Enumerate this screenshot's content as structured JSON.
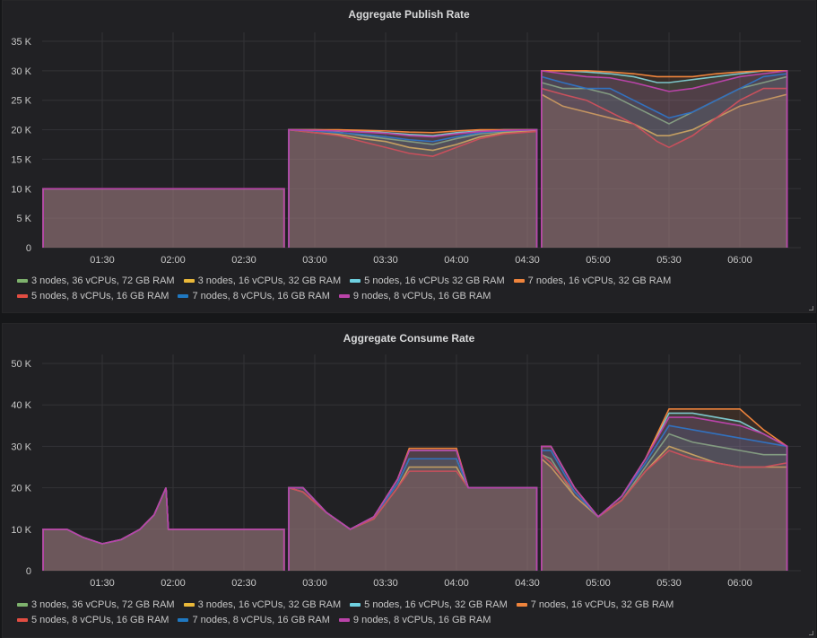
{
  "colors": [
    "#7eb26d",
    "#eab839",
    "#6ed0e0",
    "#ef843c",
    "#e24d42",
    "#1f78c1",
    "#ba43a9"
  ],
  "chart_data": [
    {
      "type": "line",
      "title": "Aggregate Publish Rate",
      "tick_suffix": " K",
      "ylim": [
        0,
        35
      ],
      "yticks": [
        0,
        5,
        10,
        15,
        20,
        25,
        30,
        35
      ],
      "xticks": [
        "01:30",
        "02:00",
        "02:30",
        "03:00",
        "03:30",
        "04:00",
        "04:30",
        "05:00",
        "05:30",
        "06:00"
      ],
      "grid": true,
      "legend": "bottom",
      "fill": true,
      "x": [
        "01:05",
        "01:15",
        "01:25",
        "01:35",
        "01:45",
        "01:55",
        "02:05",
        "02:15",
        "02:25",
        "02:35",
        "02:47",
        "02:48",
        "02:49",
        "03:00",
        "03:10",
        "03:20",
        "03:30",
        "03:40",
        "03:50",
        "04:00",
        "04:10",
        "04:20",
        "04:34",
        "04:35",
        "04:36",
        "04:45",
        "04:55",
        "05:05",
        "05:15",
        "05:25",
        "05:30",
        "05:40",
        "05:50",
        "06:00",
        "06:10",
        "06:20"
      ],
      "series": [
        {
          "name": "3 nodes, 36 vCPUs, 72 GB RAM",
          "values": [
            10,
            10,
            10,
            10,
            10,
            10,
            10,
            10,
            10,
            10,
            10,
            null,
            20,
            19.8,
            19.6,
            19,
            18.5,
            18,
            17.5,
            18.5,
            19.3,
            19.7,
            20,
            null,
            28,
            27,
            27,
            26,
            24,
            22,
            21,
            23,
            25,
            27,
            28,
            29
          ]
        },
        {
          "name": "3 nodes, 16 vCPUs, 32 GB RAM",
          "values": [
            10,
            10,
            10,
            10,
            10,
            10,
            10,
            10,
            10,
            10,
            10,
            null,
            20,
            19.5,
            19.2,
            18.5,
            18,
            17,
            16.5,
            17.5,
            18.8,
            19.5,
            19.8,
            null,
            26,
            24,
            23,
            22,
            21,
            19,
            19,
            20,
            22,
            24,
            25,
            26
          ]
        },
        {
          "name": "5 nodes, 16 vCPUs 32 GB RAM",
          "values": [
            10,
            10,
            10,
            10,
            10,
            10,
            10,
            10,
            10,
            10,
            10,
            null,
            20,
            20,
            19.9,
            19.8,
            19.5,
            19.2,
            19,
            19.5,
            19.8,
            20,
            20,
            null,
            30,
            30,
            29.8,
            29.5,
            29,
            28,
            28,
            28.5,
            29,
            29.5,
            30,
            30
          ]
        },
        {
          "name": "7 nodes, 16 vCPUs, 32 GB RAM",
          "values": [
            10,
            10,
            10,
            10,
            10,
            10,
            10,
            10,
            10,
            10,
            10,
            null,
            20,
            20,
            20,
            19.9,
            19.8,
            19.6,
            19.5,
            19.8,
            20,
            20,
            20,
            null,
            30,
            30,
            30,
            29.8,
            29.5,
            29,
            29,
            29,
            29.5,
            29.8,
            30,
            30
          ]
        },
        {
          "name": "5 nodes, 8 vCPUs, 16 GB RAM",
          "values": [
            10,
            10,
            10,
            10,
            10,
            10,
            10,
            10,
            10,
            10,
            10,
            null,
            20,
            19.5,
            19,
            18,
            17,
            16,
            15.5,
            17,
            18.5,
            19.3,
            19.7,
            null,
            27,
            26,
            25,
            23,
            21,
            18,
            17,
            19,
            22,
            25,
            27,
            27
          ]
        },
        {
          "name": "7 nodes, 8 vCPUs, 16 GB RAM",
          "values": [
            10,
            10,
            10,
            10,
            10,
            10,
            10,
            10,
            10,
            10,
            10,
            null,
            20,
            19.8,
            19.5,
            19.2,
            18.8,
            18.3,
            18,
            18.8,
            19.5,
            19.8,
            20,
            null,
            29,
            28,
            27,
            27,
            25,
            23,
            22,
            23,
            25,
            27,
            29,
            29.5
          ]
        },
        {
          "name": "9 nodes, 8 vCPUs, 16 GB RAM",
          "values": [
            10,
            10,
            10,
            10,
            10,
            10,
            10,
            10,
            10,
            10,
            10,
            null,
            20,
            19.9,
            19.8,
            19.6,
            19.4,
            19,
            18.8,
            19.3,
            19.7,
            19.9,
            20,
            null,
            30,
            29.5,
            29,
            28.8,
            28,
            27,
            26.5,
            27,
            28,
            29,
            29.5,
            30
          ]
        }
      ]
    },
    {
      "type": "line",
      "title": "Aggregate Consume Rate",
      "tick_suffix": " K",
      "ylim": [
        0,
        50
      ],
      "yticks": [
        0,
        10,
        20,
        30,
        40,
        50
      ],
      "xticks": [
        "01:30",
        "02:00",
        "02:30",
        "03:00",
        "03:30",
        "04:00",
        "04:30",
        "05:00",
        "05:30",
        "06:00"
      ],
      "grid": true,
      "legend": "bottom",
      "fill": true,
      "x": [
        "01:05",
        "01:15",
        "01:22",
        "01:30",
        "01:38",
        "01:46",
        "01:52",
        "01:57",
        "01:58",
        "02:10",
        "02:30",
        "02:47",
        "02:48",
        "02:49",
        "02:55",
        "03:05",
        "03:15",
        "03:25",
        "03:35",
        "03:40",
        "03:50",
        "04:00",
        "04:05",
        "04:15",
        "04:25",
        "04:34",
        "04:35",
        "04:36",
        "04:40",
        "04:50",
        "05:00",
        "05:10",
        "05:20",
        "05:30",
        "05:40",
        "05:50",
        "06:00",
        "06:10",
        "06:20"
      ],
      "series": [
        {
          "name": "3 nodes, 36 vCPUs, 72 GB RAM",
          "values": [
            10,
            10,
            8,
            6.5,
            7.5,
            10,
            13.5,
            20,
            10,
            10,
            10,
            10,
            null,
            20,
            20,
            14,
            10,
            13,
            21,
            27,
            27,
            27,
            20,
            20,
            20,
            20,
            null,
            28,
            27,
            18,
            13,
            17,
            25,
            33,
            31,
            30,
            29,
            28,
            28
          ]
        },
        {
          "name": "3 nodes, 16 vCPUs, 32 GB RAM",
          "values": [
            10,
            10,
            8,
            6.5,
            7.5,
            10,
            13.5,
            20,
            10,
            10,
            10,
            10,
            null,
            20,
            19,
            14,
            10,
            12.5,
            20,
            25,
            25,
            25,
            20,
            20,
            20,
            20,
            null,
            27,
            25,
            18,
            13,
            17,
            24,
            30,
            28,
            26,
            25,
            25,
            25
          ]
        },
        {
          "name": "5 nodes, 16 vCPUs, 32 GB RAM",
          "values": [
            10,
            10,
            8,
            6.5,
            7.5,
            10,
            13.5,
            20,
            10,
            10,
            10,
            10,
            null,
            20,
            20,
            14,
            10,
            13,
            22,
            29,
            29,
            29,
            20,
            20,
            20,
            20,
            null,
            30,
            30,
            20,
            13,
            18,
            27,
            38,
            38,
            37,
            36,
            33,
            30
          ]
        },
        {
          "name": "7 nodes, 16 vCPUs, 32 GB RAM",
          "values": [
            10,
            10,
            8,
            6.5,
            7.5,
            10,
            13.5,
            20,
            10,
            10,
            10,
            10,
            null,
            20,
            20,
            14,
            10,
            13,
            22,
            29.5,
            29.5,
            29.5,
            20,
            20,
            20,
            20,
            null,
            30,
            30,
            20,
            13,
            18,
            27,
            39,
            39,
            39,
            39,
            34,
            30
          ]
        },
        {
          "name": "5 nodes, 8 vCPUs, 16 GB RAM",
          "values": [
            10,
            10,
            8,
            6.5,
            7.5,
            10,
            13.5,
            20,
            10,
            10,
            10,
            10,
            null,
            20,
            19,
            14,
            10,
            12.5,
            20,
            24,
            24,
            24,
            20,
            20,
            20,
            20,
            null,
            28,
            26,
            19,
            13,
            17,
            24,
            29,
            27,
            26,
            25,
            25,
            26
          ]
        },
        {
          "name": "7 nodes, 8 vCPUs, 16 GB RAM",
          "values": [
            10,
            10,
            8,
            6.5,
            7.5,
            10,
            13.5,
            20,
            10,
            10,
            10,
            10,
            null,
            20,
            20,
            14,
            10,
            13,
            21,
            27,
            27,
            27,
            20,
            20,
            20,
            20,
            null,
            29,
            29,
            19,
            13,
            18,
            26,
            35,
            34,
            33,
            32,
            31,
            30
          ]
        },
        {
          "name": "9 nodes, 8 vCPUs, 16 GB RAM",
          "values": [
            10,
            10,
            8,
            6.5,
            7.5,
            10,
            13.5,
            20,
            10,
            10,
            10,
            10,
            null,
            20,
            20,
            14,
            10,
            13,
            22,
            29,
            29,
            29,
            20,
            20,
            20,
            20,
            null,
            30,
            30,
            20,
            13,
            18,
            27,
            37,
            37,
            36,
            35,
            33,
            30
          ]
        }
      ]
    }
  ]
}
